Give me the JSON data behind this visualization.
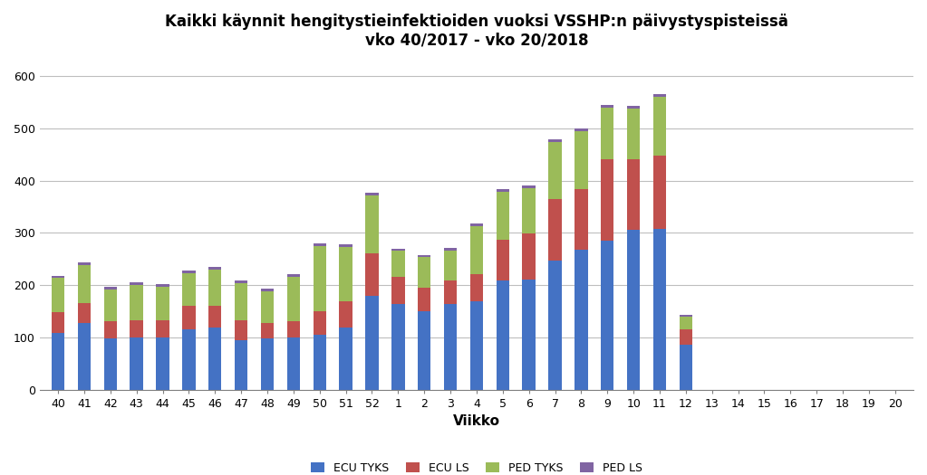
{
  "title_line1": "Kaikki käynnit hengitystieinfektioiden vuoksi VSSHP:n päivystyspisteissä",
  "title_line2": "vko 40/2017 - vko 20/2018",
  "xlabel": "Viikko",
  "ylabel": "",
  "categories": [
    "40",
    "41",
    "42",
    "43",
    "44",
    "45",
    "46",
    "47",
    "48",
    "49",
    "50",
    "51",
    "52",
    "1",
    "2",
    "3",
    "4",
    "5",
    "6",
    "7",
    "8",
    "9",
    "10",
    "11",
    "12",
    "13",
    "14",
    "15",
    "16",
    "17",
    "18",
    "19",
    "20"
  ],
  "ecu_tyks": [
    108,
    128,
    98,
    100,
    100,
    115,
    118,
    95,
    98,
    100,
    105,
    118,
    180,
    163,
    150,
    163,
    168,
    208,
    210,
    247,
    268,
    285,
    305,
    308,
    85,
    0,
    0,
    0,
    0,
    0,
    0,
    0,
    0
  ],
  "ecu_ls": [
    40,
    38,
    32,
    32,
    32,
    45,
    42,
    38,
    30,
    30,
    45,
    50,
    80,
    52,
    45,
    45,
    52,
    78,
    88,
    118,
    115,
    155,
    135,
    140,
    30,
    0,
    0,
    0,
    0,
    0,
    0,
    0,
    0
  ],
  "ped_tyks": [
    65,
    72,
    62,
    68,
    65,
    62,
    70,
    70,
    60,
    85,
    125,
    105,
    112,
    50,
    58,
    58,
    92,
    92,
    88,
    108,
    112,
    100,
    98,
    112,
    25,
    0,
    0,
    0,
    0,
    0,
    0,
    0,
    0
  ],
  "ped_ls": [
    5,
    5,
    5,
    5,
    5,
    5,
    5,
    5,
    5,
    5,
    5,
    5,
    5,
    5,
    5,
    5,
    5,
    5,
    5,
    5,
    5,
    5,
    5,
    5,
    3,
    0,
    0,
    0,
    0,
    0,
    0,
    0,
    0
  ],
  "color_ecu_tyks": "#4472C4",
  "color_ecu_ls": "#C0504D",
  "color_ped_tyks": "#9BBB59",
  "color_ped_ls": "#8064A2",
  "ylim": [
    0,
    640
  ],
  "yticks": [
    0,
    100,
    200,
    300,
    400,
    500,
    600
  ],
  "background_color": "#FFFFFF",
  "grid_color": "#BEBEBE",
  "bar_width": 0.5,
  "legend_labels": [
    "ECU TYKS",
    "ECU LS",
    "PED TYKS",
    "PED LS"
  ]
}
